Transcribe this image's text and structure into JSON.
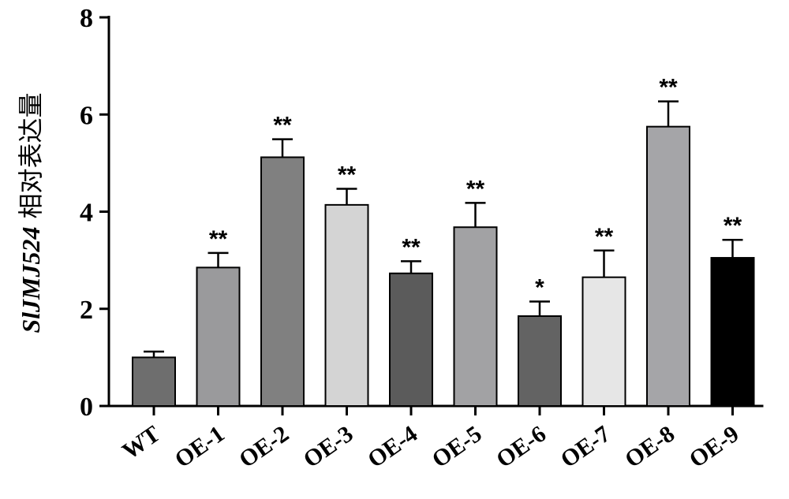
{
  "chart_data": {
    "type": "bar",
    "ylabel_gene": "SlJMJ524",
    "ylabel_rest": " 相对表达量",
    "ylim": [
      0,
      8
    ],
    "yticks": [
      "0",
      "2",
      "4",
      "6",
      "8"
    ],
    "grid": false,
    "categories": [
      "WT",
      "OE-1",
      "OE-2",
      "OE-3",
      "OE-4",
      "OE-5",
      "OE-6",
      "OE-7",
      "OE-8",
      "OE-9"
    ],
    "values": [
      1.0,
      2.85,
      5.12,
      4.14,
      2.73,
      3.68,
      1.85,
      2.65,
      5.75,
      3.05
    ],
    "errors": [
      0.12,
      0.3,
      0.37,
      0.33,
      0.25,
      0.5,
      0.3,
      0.55,
      0.52,
      0.37
    ],
    "significance": [
      "",
      "**",
      "**",
      "**",
      "**",
      "**",
      "*",
      "**",
      "**",
      "**"
    ],
    "bar_colors": [
      "#6e6e6e",
      "#9a9a9c",
      "#808080",
      "#d4d4d4",
      "#5b5b5b",
      "#a2a2a4",
      "#636363",
      "#e6e6e6",
      "#a5a5a8",
      "#000000"
    ]
  }
}
